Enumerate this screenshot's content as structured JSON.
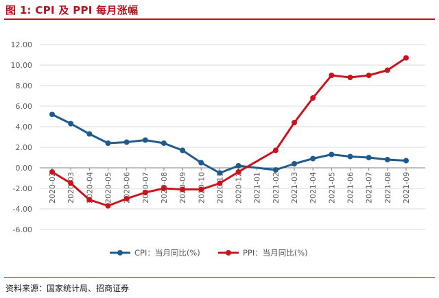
{
  "header": {
    "title": "图 1:  CPI 及 PPI 每月涨幅"
  },
  "footer": {
    "source": "资料来源：国家统计局、招商证券"
  },
  "colors": {
    "title": "#b5121b",
    "cpi": "#1f5a8c",
    "ppi": "#c8141e",
    "grid": "#d9d9d9",
    "axis": "#7f7f7f",
    "text": "#595959"
  },
  "chart_data": {
    "type": "line",
    "title": "CPI 及 PPI 每月涨幅",
    "xlabel": "",
    "ylabel": "",
    "ylim": [
      -6,
      12
    ],
    "yticks": [
      12,
      10,
      8,
      6,
      4,
      2,
      0,
      -2,
      -4,
      -6
    ],
    "ytick_labels": [
      "12.00",
      "10.00",
      "8.00",
      "6.00",
      "4.00",
      "2.00",
      "0.00",
      "-2.00",
      "-4.00",
      "-6.00"
    ],
    "categories": [
      "2020-02",
      "2020-03",
      "2020-04",
      "2020-05",
      "2020-06",
      "2020-07",
      "2020-08",
      "2020-09",
      "2020-10",
      "2020-11",
      "2020-12",
      "2021-01",
      "2021-02",
      "2021-03",
      "2021-04",
      "2021-05",
      "2021-06",
      "2021-07",
      "2021-08",
      "2021-09"
    ],
    "legend_position": "bottom-center",
    "series": [
      {
        "name": "CPI：当月同比(%)",
        "color_key": "cpi",
        "values": [
          5.2,
          4.3,
          3.3,
          2.4,
          2.5,
          2.7,
          2.4,
          1.7,
          0.5,
          -0.5,
          0.2,
          null,
          -0.2,
          0.4,
          0.9,
          1.3,
          1.1,
          1.0,
          0.8,
          0.7
        ]
      },
      {
        "name": "PPI：当月同比(%)",
        "color_key": "ppi",
        "values": [
          -0.4,
          -1.5,
          -3.1,
          -3.7,
          -3.0,
          -2.4,
          -2.0,
          -2.1,
          -2.1,
          -1.5,
          -0.4,
          null,
          1.7,
          4.4,
          6.8,
          9.0,
          8.8,
          9.0,
          9.5,
          10.7
        ]
      }
    ]
  }
}
